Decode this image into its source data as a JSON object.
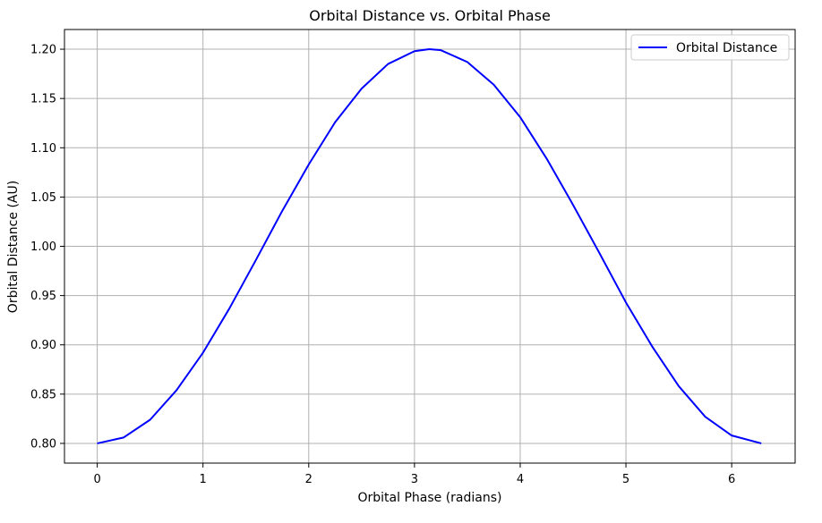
{
  "chart_data": {
    "type": "line",
    "title": "Orbital Distance vs. Orbital Phase",
    "xlabel": "Orbital Phase (radians)",
    "ylabel": "Orbital Distance (AU)",
    "xlim": [
      -0.31,
      6.6
    ],
    "ylim": [
      0.78,
      1.22
    ],
    "xticks": [
      0,
      1,
      2,
      3,
      4,
      5,
      6
    ],
    "xtick_labels": [
      "0",
      "1",
      "2",
      "3",
      "4",
      "5",
      "6"
    ],
    "yticks": [
      0.8,
      0.85,
      0.9,
      0.95,
      1.0,
      1.05,
      1.1,
      1.15,
      1.2
    ],
    "ytick_labels": [
      "0.80",
      "0.85",
      "0.90",
      "0.95",
      "1.00",
      "1.05",
      "1.10",
      "1.15",
      "1.20"
    ],
    "grid": true,
    "legend_position": "top-right",
    "series": [
      {
        "name": "Orbital Distance",
        "color": "#0000ff",
        "x": [
          0.0,
          0.25,
          0.5,
          0.75,
          1.0,
          1.25,
          1.5,
          1.75,
          2.0,
          2.25,
          2.5,
          2.75,
          3.0,
          3.14,
          3.25,
          3.5,
          3.75,
          4.0,
          4.25,
          4.5,
          4.75,
          5.0,
          5.25,
          5.5,
          5.75,
          6.0,
          6.28
        ],
        "y": [
          0.8,
          0.806,
          0.824,
          0.854,
          0.892,
          0.937,
          0.986,
          1.036,
          1.083,
          1.126,
          1.16,
          1.185,
          1.198,
          1.2,
          1.199,
          1.187,
          1.164,
          1.131,
          1.089,
          1.042,
          0.993,
          0.943,
          0.898,
          0.858,
          0.827,
          0.808,
          0.8
        ]
      }
    ]
  }
}
